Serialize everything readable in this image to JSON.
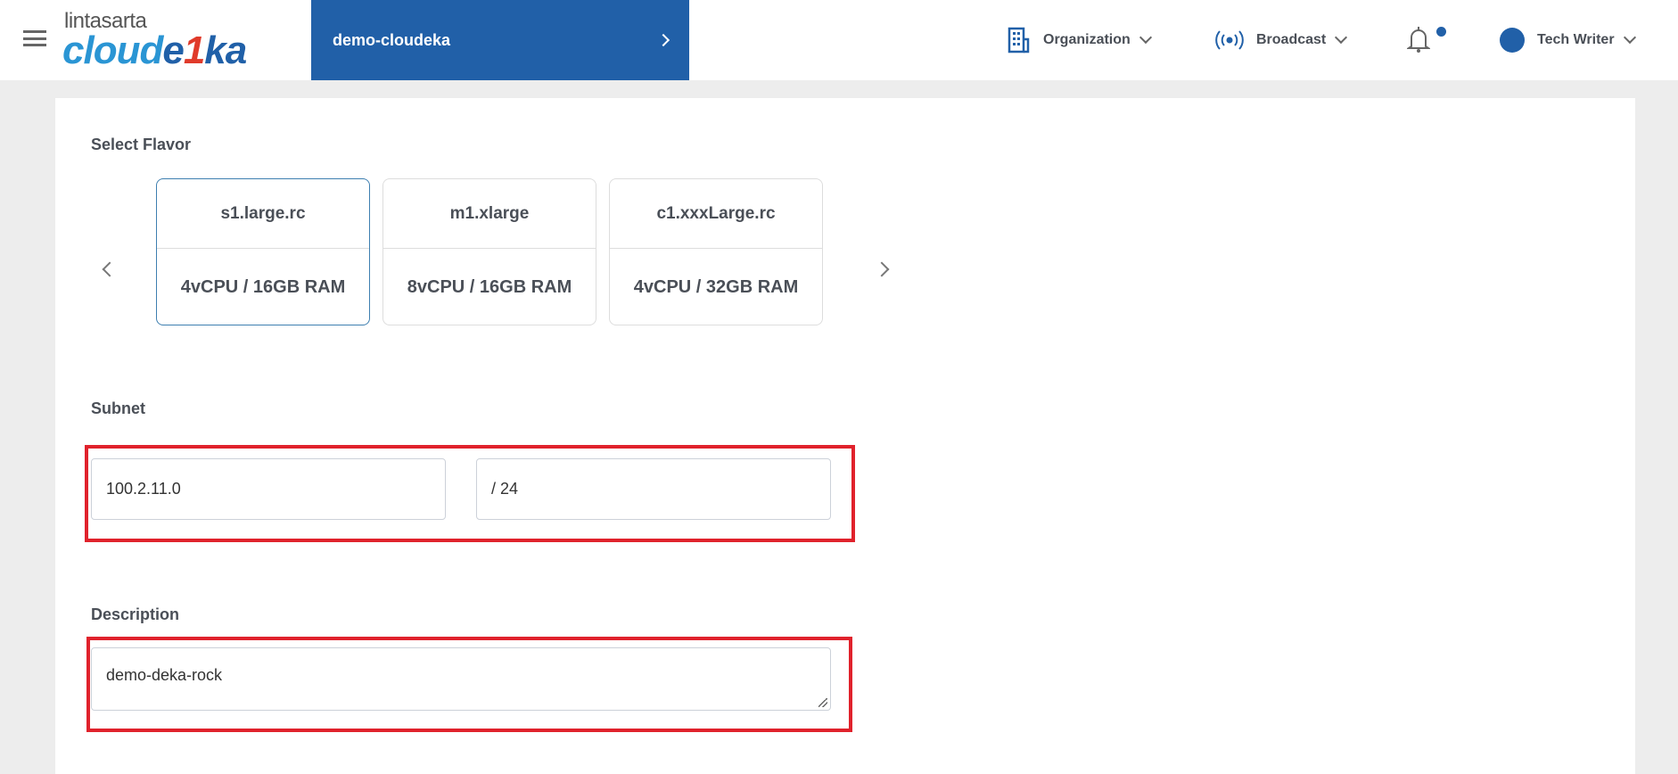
{
  "header": {
    "logo_top": "lintasarta",
    "logo_main_a": "cloud",
    "logo_main_b": "e",
    "logo_main_k": "1",
    "logo_main_c": "ka",
    "project": "demo-cloudeka",
    "organization": "Organization",
    "broadcast": "Broadcast",
    "user": "Tech Writer",
    "notification_dot": true,
    "accent": "#2160a8"
  },
  "form": {
    "flavor_label": "Select Flavor",
    "flavors": [
      {
        "name": "s1.large.rc",
        "spec": "4vCPU / 16GB RAM",
        "selected": true
      },
      {
        "name": "m1.xlarge",
        "spec": "8vCPU / 16GB RAM",
        "selected": false
      },
      {
        "name": "c1.xxxLarge.rc",
        "spec": "4vCPU / 32GB RAM",
        "selected": false
      }
    ],
    "subnet_label": "Subnet",
    "subnet_ip": "100.2.11.0",
    "subnet_mask": "/ 24",
    "description_label": "Description",
    "description": "demo-deka-rock"
  },
  "highlight_color": "#e0222c"
}
